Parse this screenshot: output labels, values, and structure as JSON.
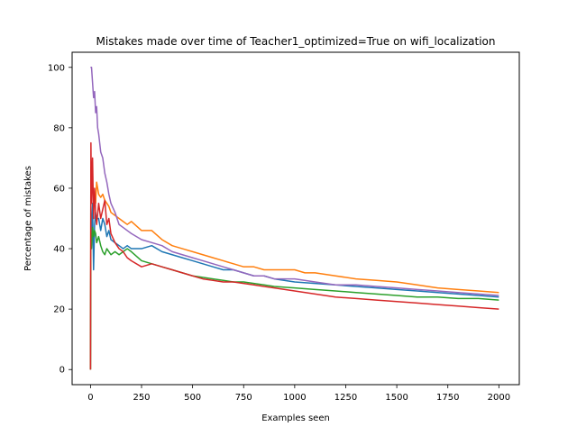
{
  "chart_data": {
    "type": "line",
    "title": "Mistakes made over time of Teacher1_optimized=True on wifi_localization",
    "xlabel": "Examples seen",
    "ylabel": "Percentage of mistakes",
    "xlim": [
      -90,
      2100
    ],
    "ylim": [
      -5,
      105
    ],
    "xticks": [
      0,
      250,
      500,
      750,
      1000,
      1250,
      1500,
      1750,
      2000
    ],
    "yticks": [
      0,
      20,
      40,
      60,
      80,
      100
    ],
    "grid": false,
    "legend": null,
    "series": [
      {
        "color": "#1f77b4",
        "x": [
          0,
          2,
          5,
          10,
          15,
          20,
          25,
          30,
          40,
          50,
          60,
          70,
          80,
          90,
          100,
          120,
          140,
          160,
          180,
          200,
          250,
          300,
          350,
          400,
          450,
          500,
          550,
          600,
          650,
          700,
          750,
          800,
          850,
          900,
          1000,
          1100,
          1200,
          1300,
          1400,
          1500,
          1600,
          1700,
          1800,
          1900,
          2000
        ],
        "y": [
          0,
          50,
          45,
          55,
          33,
          48,
          52,
          50,
          50,
          46,
          50,
          48,
          44,
          46,
          43,
          42,
          41,
          40,
          41,
          40,
          40,
          41,
          39,
          38,
          37,
          36,
          35,
          34,
          33,
          33,
          32,
          31,
          31,
          30,
          29,
          28.5,
          28,
          27.5,
          27,
          26.5,
          26,
          25.5,
          25,
          24.5,
          24
        ]
      },
      {
        "color": "#ff7f0e",
        "x": [
          0,
          2,
          5,
          10,
          15,
          20,
          25,
          30,
          40,
          50,
          60,
          70,
          80,
          90,
          100,
          120,
          140,
          160,
          180,
          200,
          250,
          300,
          350,
          400,
          450,
          500,
          550,
          600,
          650,
          700,
          750,
          800,
          850,
          900,
          950,
          1000,
          1050,
          1100,
          1200,
          1300,
          1400,
          1500,
          1600,
          1700,
          1800,
          1900,
          2000
        ],
        "y": [
          0,
          67,
          60,
          62,
          57,
          58,
          55,
          62,
          58,
          57,
          58,
          56,
          55,
          54,
          52,
          51,
          50,
          49,
          48,
          49,
          46,
          46,
          43,
          41,
          40,
          39,
          38,
          37,
          36,
          35,
          34,
          34,
          33,
          33,
          33,
          33,
          32,
          32,
          31,
          30,
          29.5,
          29,
          28,
          27,
          26.5,
          26,
          25.5
        ]
      },
      {
        "color": "#2ca02c",
        "x": [
          0,
          2,
          5,
          10,
          15,
          20,
          25,
          30,
          40,
          50,
          60,
          70,
          80,
          90,
          100,
          120,
          140,
          160,
          180,
          200,
          250,
          300,
          350,
          400,
          450,
          500,
          550,
          600,
          650,
          700,
          750,
          800,
          850,
          900,
          1000,
          1100,
          1200,
          1300,
          1400,
          1500,
          1600,
          1700,
          1800,
          1900,
          2000
        ],
        "y": [
          0,
          45,
          40,
          47,
          44,
          46,
          45,
          42,
          44,
          41,
          39,
          38,
          40,
          39,
          38,
          39,
          38,
          39,
          40,
          39,
          36,
          35,
          34,
          33,
          32,
          31,
          30.5,
          30,
          29.5,
          29,
          29,
          28.5,
          28,
          27.5,
          27,
          26.5,
          26,
          25.5,
          25,
          24.5,
          24,
          24,
          23.5,
          23.5,
          23
        ]
      },
      {
        "color": "#d62728",
        "x": [
          0,
          2,
          5,
          10,
          15,
          20,
          25,
          30,
          40,
          50,
          60,
          70,
          80,
          90,
          100,
          120,
          140,
          160,
          180,
          200,
          250,
          300,
          350,
          400,
          450,
          500,
          550,
          600,
          650,
          700,
          750,
          800,
          850,
          900,
          1000,
          1100,
          1200,
          1300,
          1400,
          1500,
          1600,
          1700,
          1800,
          1900,
          2000
        ],
        "y": [
          0,
          75,
          55,
          70,
          50,
          60,
          52,
          48,
          55,
          50,
          53,
          56,
          48,
          50,
          45,
          42,
          40,
          39,
          37,
          36,
          34,
          35,
          34,
          33,
          32,
          31,
          30,
          29.5,
          29,
          29,
          28.5,
          28,
          27.5,
          27,
          26,
          25,
          24,
          23.5,
          23,
          22.5,
          22,
          21.5,
          21,
          20.5,
          20
        ]
      },
      {
        "color": "#9467bd",
        "x": [
          0,
          2,
          5,
          10,
          15,
          20,
          25,
          30,
          35,
          40,
          50,
          60,
          70,
          80,
          90,
          100,
          120,
          140,
          160,
          180,
          200,
          250,
          300,
          350,
          400,
          450,
          500,
          550,
          600,
          650,
          700,
          750,
          800,
          850,
          900,
          1000,
          1100,
          1200,
          1300,
          1400,
          1500,
          1600,
          1700,
          1800,
          1900,
          2000
        ],
        "y": [
          100,
          100,
          100,
          95,
          90,
          92,
          85,
          87,
          80,
          78,
          72,
          70,
          65,
          62,
          58,
          55,
          52,
          48,
          47,
          46,
          45,
          43,
          42,
          41,
          39,
          38,
          37,
          36,
          35,
          34,
          33,
          32,
          31,
          31,
          30,
          30,
          29,
          28,
          28,
          27.5,
          27,
          26.5,
          26,
          25.5,
          25,
          24.5
        ]
      }
    ]
  }
}
